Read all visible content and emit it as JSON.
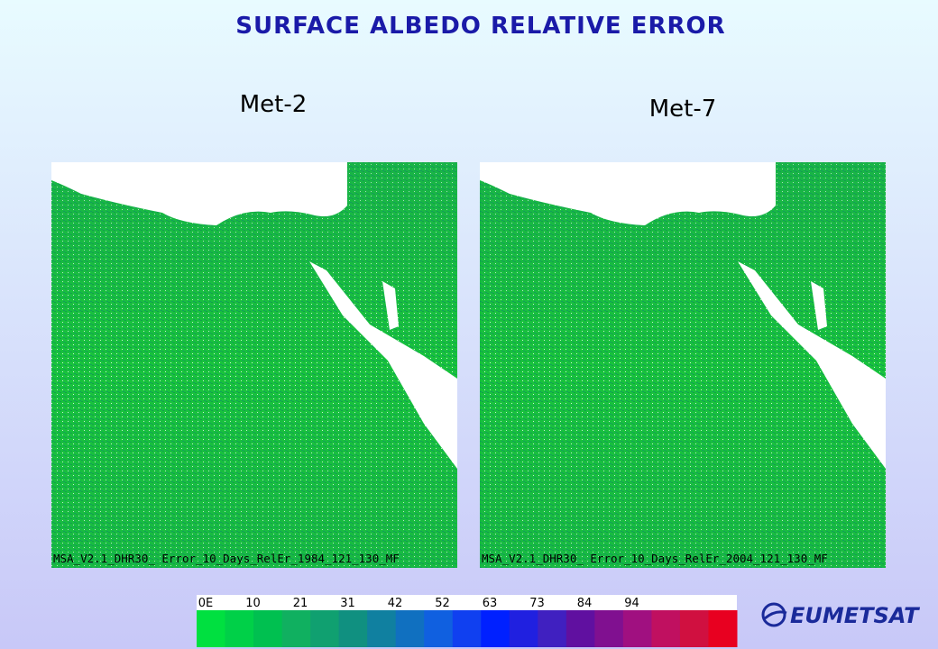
{
  "header": {
    "title": "SURFACE ALBEDO RELATIVE ERROR"
  },
  "panels": [
    {
      "label": "Met-2",
      "caption": "MSA_V2.1_DHR30_ Error_10_Days_RelEr_1984_121_130_MF"
    },
    {
      "label": "Met-7",
      "caption": "MSA_V2.1_DHR30_ Error_10_Days_RelEr_2004_121_130_MF"
    }
  ],
  "colorbar": {
    "ticks": [
      "0E",
      "10",
      "21",
      "31",
      "42",
      "52",
      "63",
      "73",
      "84",
      "94"
    ],
    "colors": [
      "#00e040",
      "#00d048",
      "#00c050",
      "#10b060",
      "#10a070",
      "#109080",
      "#1080a0",
      "#1070c0",
      "#1060e0",
      "#1040f0",
      "#0020ff",
      "#2020e0",
      "#4020c0",
      "#6010a0",
      "#801090",
      "#a01080",
      "#c01060",
      "#d01040",
      "#e80020"
    ]
  },
  "logo": {
    "text": "EUMETSAT"
  }
}
